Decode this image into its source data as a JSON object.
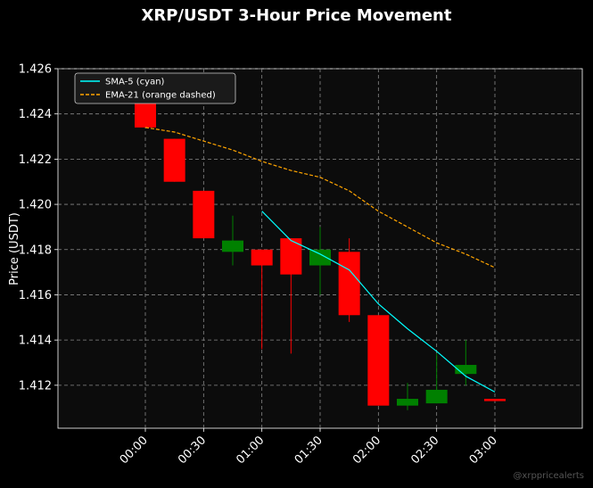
{
  "chart_data": {
    "type": "candlestick",
    "title": "XRP/USDT 3-Hour Price Movement",
    "xlabel": "",
    "ylabel": "Price (USDT)",
    "ylim": [
      1.4101,
      1.426
    ],
    "yticks": [
      "1.412",
      "1.414",
      "1.416",
      "1.418",
      "1.420",
      "1.422",
      "1.424",
      "1.426"
    ],
    "xticks": [
      "00:00",
      "00:30",
      "01:00",
      "01:30",
      "02:00",
      "02:30",
      "03:00"
    ],
    "xticks_time": [
      "00:00",
      "00:30",
      "01:00",
      "01:30",
      "02:00",
      "02:30",
      "03:00"
    ],
    "grid": true,
    "legend_position": "top-left",
    "legend": [
      {
        "label": "SMA-5 (cyan)",
        "color": "#00ffff",
        "style": "solid"
      },
      {
        "label": "EMA-21 (orange dashed)",
        "color": "#ffa500",
        "style": "dashed"
      }
    ],
    "candles": [
      {
        "time": "00:00",
        "open": 1.4251,
        "high": 1.4251,
        "low": 1.4234,
        "close": 1.4234
      },
      {
        "time": "00:15",
        "open": 1.4229,
        "high": 1.4229,
        "low": 1.421,
        "close": 1.421
      },
      {
        "time": "00:30",
        "open": 1.4206,
        "high": 1.4206,
        "low": 1.4185,
        "close": 1.4185
      },
      {
        "time": "00:45",
        "open": 1.4179,
        "high": 1.4195,
        "low": 1.4173,
        "close": 1.4184
      },
      {
        "time": "01:00",
        "open": 1.418,
        "high": 1.418,
        "low": 1.4136,
        "close": 1.4173
      },
      {
        "time": "01:15",
        "open": 1.4185,
        "high": 1.4185,
        "low": 1.4134,
        "close": 1.4169
      },
      {
        "time": "01:30",
        "open": 1.4173,
        "high": 1.419,
        "low": 1.416,
        "close": 1.418
      },
      {
        "time": "01:45",
        "open": 1.4179,
        "high": 1.4185,
        "low": 1.4148,
        "close": 1.4151
      },
      {
        "time": "02:00",
        "open": 1.4151,
        "high": 1.4151,
        "low": 1.4111,
        "close": 1.4111
      },
      {
        "time": "02:15",
        "open": 1.4111,
        "high": 1.4121,
        "low": 1.4109,
        "close": 1.4114
      },
      {
        "time": "02:30",
        "open": 1.4112,
        "high": 1.4134,
        "low": 1.4112,
        "close": 1.4118
      },
      {
        "time": "02:45",
        "open": 1.4125,
        "high": 1.414,
        "low": 1.412,
        "close": 1.4129
      },
      {
        "time": "03:00",
        "open": 1.4114,
        "high": 1.4114,
        "low": 1.4113,
        "close": 1.4113
      }
    ],
    "series": [
      {
        "name": "SMA-5 (cyan)",
        "color": "#00ffff",
        "x": [
          "01:00",
          "01:15",
          "01:30",
          "01:45",
          "02:00",
          "02:15",
          "02:30",
          "02:45",
          "03:00"
        ],
        "values": [
          1.4197,
          1.4184,
          1.4178,
          1.4171,
          1.4156,
          1.4145,
          1.4135,
          1.4124,
          1.4117
        ]
      },
      {
        "name": "EMA-21 (orange dashed)",
        "color": "#ffa500",
        "x": [
          "00:00",
          "00:15",
          "00:30",
          "00:45",
          "01:00",
          "01:15",
          "01:30",
          "01:45",
          "02:00",
          "02:15",
          "02:30",
          "02:45",
          "03:00"
        ],
        "values": [
          1.4234,
          1.4232,
          1.4228,
          1.4224,
          1.4219,
          1.4215,
          1.4212,
          1.4206,
          1.4197,
          1.419,
          1.4183,
          1.4178,
          1.4172
        ]
      }
    ],
    "up_color": "#008000",
    "down_color": "#ff0000"
  },
  "watermark": "@xrppricealerts"
}
